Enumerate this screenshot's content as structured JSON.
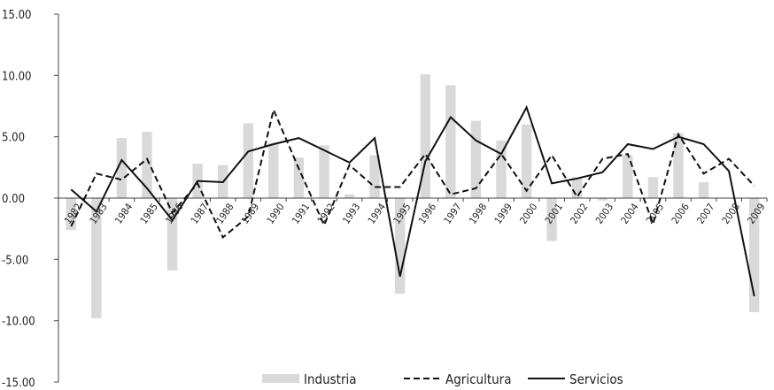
{
  "chart_data": {
    "type": "bar+line",
    "title": "",
    "xlabel": "",
    "ylabel": "",
    "ylim": [
      -15,
      15
    ],
    "yticks": [
      "15.00",
      "10.00",
      "5.00",
      "0.00",
      "-5.00",
      "-10.00",
      "-15.00"
    ],
    "grid": false,
    "legend_position": "bottom",
    "categories": [
      "1982",
      "1983",
      "1984",
      "1985",
      "1986",
      "1987",
      "1988",
      "1989",
      "1990",
      "1991",
      "1992",
      "1993",
      "1994",
      "1995",
      "1996",
      "1997",
      "1998",
      "1999",
      "2000",
      "2001",
      "2002",
      "2003",
      "2004",
      "2005",
      "2006",
      "2007",
      "2008",
      "2009"
    ],
    "series": [
      {
        "name": "Industria",
        "kind": "bar",
        "color": "#d9d9d9",
        "values": [
          -2.6,
          -9.8,
          4.9,
          5.4,
          -5.9,
          2.8,
          2.7,
          6.1,
          4.5,
          3.3,
          4.3,
          0.3,
          3.5,
          -7.8,
          10.1,
          9.2,
          6.3,
          4.7,
          6.0,
          -3.5,
          1.7,
          -0.2,
          3.5,
          1.7,
          5.3,
          1.3,
          0.0,
          -9.3
        ]
      },
      {
        "name": "Agricultura",
        "kind": "line",
        "style": "dashed",
        "color": "#111111",
        "values": [
          -2.3,
          2.0,
          1.5,
          3.2,
          -1.2,
          1.2,
          -3.2,
          -1.5,
          7.2,
          2.4,
          -2.2,
          2.7,
          0.9,
          0.9,
          3.6,
          0.3,
          0.8,
          3.6,
          0.6,
          3.5,
          0.1,
          3.2,
          3.6,
          -2.1,
          5.2,
          2.0,
          3.2,
          1.0
        ]
      },
      {
        "name": "Servicios",
        "kind": "line",
        "style": "solid",
        "color": "#111111",
        "values": [
          0.7,
          -1.1,
          3.1,
          0.8,
          -1.8,
          1.4,
          1.3,
          3.8,
          4.4,
          4.9,
          3.9,
          2.9,
          4.9,
          -6.4,
          3.0,
          6.6,
          4.7,
          3.6,
          7.4,
          1.2,
          1.6,
          2.1,
          4.4,
          4.0,
          5.0,
          4.4,
          2.2,
          -8.0
        ]
      }
    ]
  }
}
